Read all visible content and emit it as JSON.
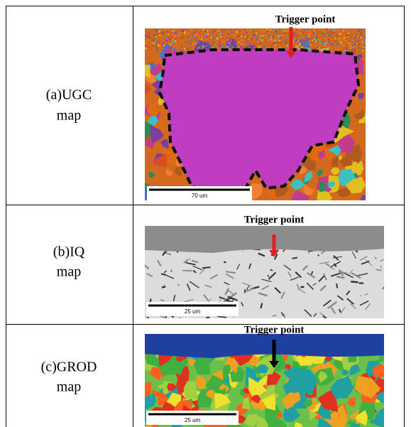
{
  "rows": [
    {
      "label": [
        "(a)UGC",
        "map"
      ],
      "annotation": "Trigger point",
      "scale_bar": "70 um"
    },
    {
      "label": [
        "(b)IQ",
        "map"
      ],
      "annotation": "Trigger point",
      "scale_bar": "25 um"
    },
    {
      "label": [
        "(c)GROD",
        "map"
      ],
      "annotation": "Trigger point",
      "scale_bar": "25 um"
    }
  ]
}
